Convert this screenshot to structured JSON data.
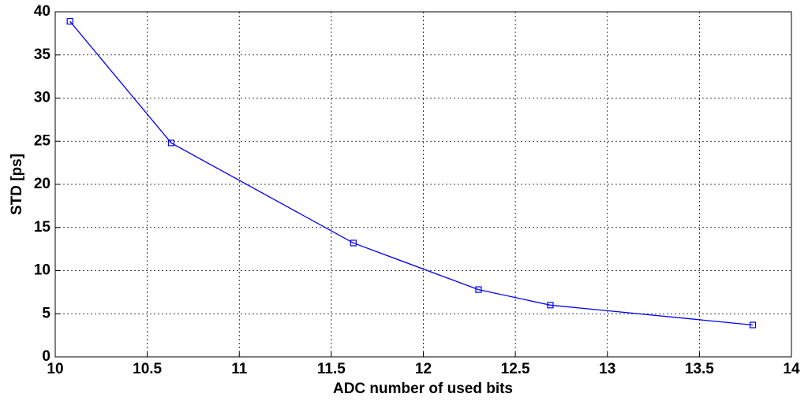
{
  "chart_data": {
    "type": "line",
    "x_label": "ADC number of used bits",
    "y_label": "STD [ps]",
    "x": [
      10.08,
      10.63,
      11.62,
      12.3,
      12.69,
      13.79
    ],
    "series": [
      {
        "color": "#0000ff",
        "marker": "square",
        "values": [
          38.9,
          24.8,
          13.2,
          7.8,
          6.0,
          3.7
        ]
      }
    ],
    "xlim": [
      10,
      14
    ],
    "xticks": [
      10,
      10.5,
      11,
      11.5,
      12,
      12.5,
      13,
      13.5,
      14
    ],
    "ylim": [
      0,
      40
    ],
    "yticks": [
      0,
      5,
      10,
      15,
      20,
      25,
      30,
      35,
      40
    ],
    "grid": true
  }
}
